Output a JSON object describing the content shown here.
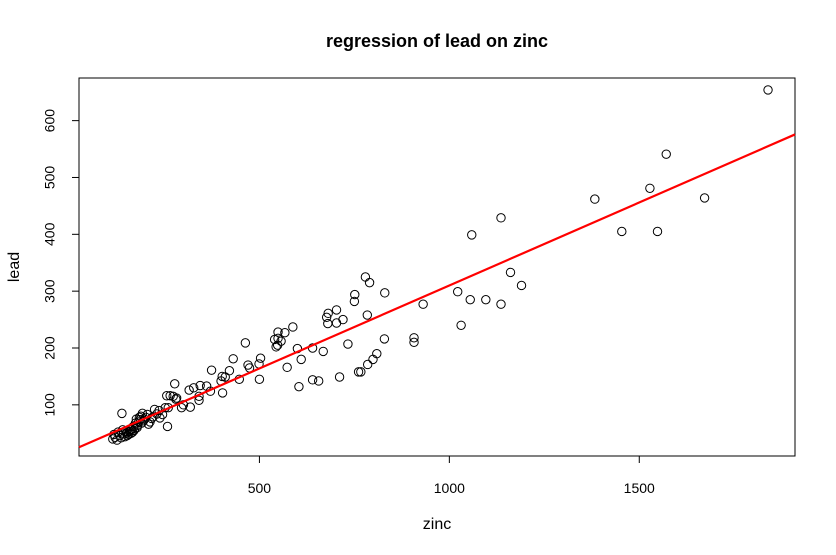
{
  "chart_data": {
    "type": "scatter",
    "title": "regression of lead on zinc",
    "xlabel": "zinc",
    "ylabel": "lead",
    "xlim": [
      25,
      1910
    ],
    "ylim": [
      10,
      675
    ],
    "xticks": [
      500,
      1000,
      1500
    ],
    "yticks": [
      100,
      200,
      300,
      400,
      500,
      600
    ],
    "grid": false,
    "legend": "none",
    "point_color": "#000000",
    "line_color": "#ff0000",
    "regression": {
      "intercept": 18.0,
      "slope": 0.292
    },
    "points": [
      [
        1839,
        654
      ],
      [
        1571,
        541
      ],
      [
        1528,
        481
      ],
      [
        1672,
        464
      ],
      [
        1383,
        462
      ],
      [
        1454,
        405
      ],
      [
        1548,
        405
      ],
      [
        1136,
        429
      ],
      [
        1059,
        399
      ],
      [
        1161,
        333
      ],
      [
        1190,
        310
      ],
      [
        1022,
        299
      ],
      [
        1055,
        285
      ],
      [
        1096,
        285
      ],
      [
        1136,
        277
      ],
      [
        1031,
        240
      ],
      [
        931,
        277
      ],
      [
        830,
        297
      ],
      [
        779,
        325
      ],
      [
        790,
        315
      ],
      [
        751,
        294
      ],
      [
        750,
        282
      ],
      [
        703,
        267
      ],
      [
        681,
        261
      ],
      [
        677,
        254
      ],
      [
        720,
        250
      ],
      [
        680,
        243
      ],
      [
        703,
        244
      ],
      [
        784,
        258
      ],
      [
        733,
        207
      ],
      [
        829,
        216
      ],
      [
        907,
        218
      ],
      [
        907,
        210
      ],
      [
        809,
        190
      ],
      [
        799,
        180
      ],
      [
        785,
        171
      ],
      [
        767,
        158
      ],
      [
        761,
        158
      ],
      [
        711,
        149
      ],
      [
        656,
        142
      ],
      [
        640,
        144
      ],
      [
        604,
        132
      ],
      [
        668,
        194
      ],
      [
        640,
        200
      ],
      [
        600,
        199
      ],
      [
        610,
        180
      ],
      [
        573,
        166
      ],
      [
        588,
        237
      ],
      [
        567,
        227
      ],
      [
        549,
        228
      ],
      [
        549,
        217
      ],
      [
        557,
        212
      ],
      [
        548,
        205
      ],
      [
        544,
        202
      ],
      [
        540,
        215
      ],
      [
        499,
        172
      ],
      [
        503,
        182
      ],
      [
        500,
        145
      ],
      [
        463,
        209
      ],
      [
        470,
        170
      ],
      [
        474,
        165
      ],
      [
        447,
        145
      ],
      [
        431,
        181
      ],
      [
        421,
        160
      ],
      [
        410,
        149
      ],
      [
        402,
        150
      ],
      [
        399,
        142
      ],
      [
        403,
        121
      ],
      [
        374,
        161
      ],
      [
        371,
        124
      ],
      [
        361,
        133
      ],
      [
        344,
        134
      ],
      [
        341,
        115
      ],
      [
        341,
        108
      ],
      [
        327,
        130
      ],
      [
        318,
        96
      ],
      [
        315,
        126
      ],
      [
        300,
        100
      ],
      [
        295,
        95
      ],
      [
        277,
        137
      ],
      [
        282,
        112
      ],
      [
        280,
        110
      ],
      [
        273,
        115
      ],
      [
        265,
        116
      ],
      [
        256,
        116
      ],
      [
        260,
        95
      ],
      [
        252,
        95
      ],
      [
        258,
        62
      ],
      [
        245,
        83
      ],
      [
        238,
        77
      ],
      [
        236,
        90
      ],
      [
        230,
        84
      ],
      [
        224,
        92
      ],
      [
        220,
        79
      ],
      [
        216,
        76
      ],
      [
        212,
        70
      ],
      [
        208,
        66
      ],
      [
        205,
        83
      ],
      [
        201,
        78
      ],
      [
        197,
        75
      ],
      [
        195,
        72
      ],
      [
        192,
        85
      ],
      [
        190,
        68
      ],
      [
        188,
        80
      ],
      [
        186,
        74
      ],
      [
        184,
        78
      ],
      [
        182,
        70
      ],
      [
        180,
        64
      ],
      [
        178,
        60
      ],
      [
        176,
        75
      ],
      [
        174,
        68
      ],
      [
        172,
        58
      ],
      [
        170,
        55
      ],
      [
        168,
        62
      ],
      [
        166,
        52
      ],
      [
        164,
        57
      ],
      [
        162,
        50
      ],
      [
        160,
        56
      ],
      [
        158,
        53
      ],
      [
        156,
        48
      ],
      [
        154,
        52
      ],
      [
        152,
        46
      ],
      [
        150,
        50
      ],
      [
        148,
        54
      ],
      [
        146,
        44
      ],
      [
        142,
        50
      ],
      [
        140,
        56
      ],
      [
        138,
        85
      ],
      [
        136,
        42
      ],
      [
        132,
        46
      ],
      [
        128,
        52
      ],
      [
        125,
        38
      ],
      [
        120,
        43
      ],
      [
        117,
        48
      ],
      [
        114,
        40
      ]
    ]
  }
}
